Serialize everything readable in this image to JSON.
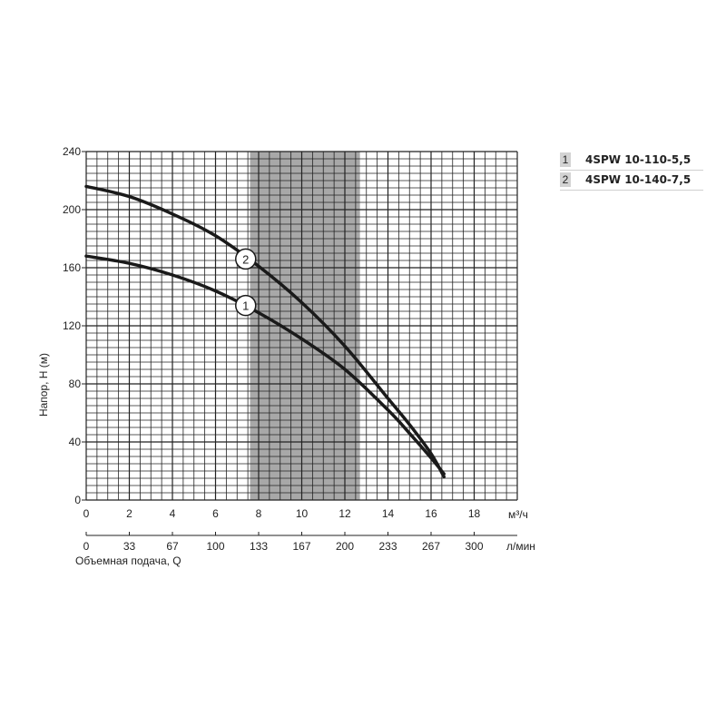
{
  "chart_data": {
    "type": "line",
    "ylabel": "Напор, H (м)",
    "xlabel": "Объемная подача, Q",
    "x_unit_primary": "м³/ч",
    "x_unit_secondary": "л/мин",
    "xlim": [
      0,
      20
    ],
    "ylim": [
      0,
      240
    ],
    "y_ticks": [
      0,
      40,
      80,
      120,
      160,
      200,
      240
    ],
    "x_ticks_primary": [
      0,
      2,
      4,
      6,
      8,
      10,
      12,
      14,
      16,
      18
    ],
    "x_ticks_secondary": [
      {
        "x": 0,
        "label": "0"
      },
      {
        "x": 2,
        "label": "33"
      },
      {
        "x": 4,
        "label": "67"
      },
      {
        "x": 6,
        "label": "100"
      },
      {
        "x": 8,
        "label": "133"
      },
      {
        "x": 10,
        "label": "167"
      },
      {
        "x": 12,
        "label": "200"
      },
      {
        "x": 14,
        "label": "233"
      },
      {
        "x": 16,
        "label": "267"
      },
      {
        "x": 18,
        "label": "300"
      }
    ],
    "grid": true,
    "working_range": [
      7.6,
      12.7
    ],
    "series": [
      {
        "name": "4SPW 10-110-5,5",
        "marker": "1",
        "marker_at": [
          7.4,
          134
        ],
        "x": [
          0,
          2,
          4,
          6,
          8,
          10,
          12,
          14,
          15,
          16,
          16.6
        ],
        "y": [
          168,
          163,
          155,
          144,
          129,
          111,
          90,
          62,
          46,
          29,
          18
        ]
      },
      {
        "name": "4SPW 10-140-7,5",
        "marker": "2",
        "marker_at": [
          7.4,
          166
        ],
        "x": [
          0,
          2,
          4,
          6,
          8,
          10,
          12,
          14,
          15,
          16,
          16.6
        ],
        "y": [
          216,
          209,
          197,
          182,
          161,
          136,
          106,
          70,
          52,
          32,
          16
        ]
      }
    ],
    "legend_position": "top-right",
    "colors": {
      "line": "#1a1a1a",
      "grid": "#222222",
      "range_fill": "#a8a8a8",
      "legend_box": "#d3d3d3"
    }
  },
  "legend": [
    {
      "num": "1",
      "label": "4SPW 10-110-5,5"
    },
    {
      "num": "2",
      "label": "4SPW 10-140-7,5"
    }
  ]
}
